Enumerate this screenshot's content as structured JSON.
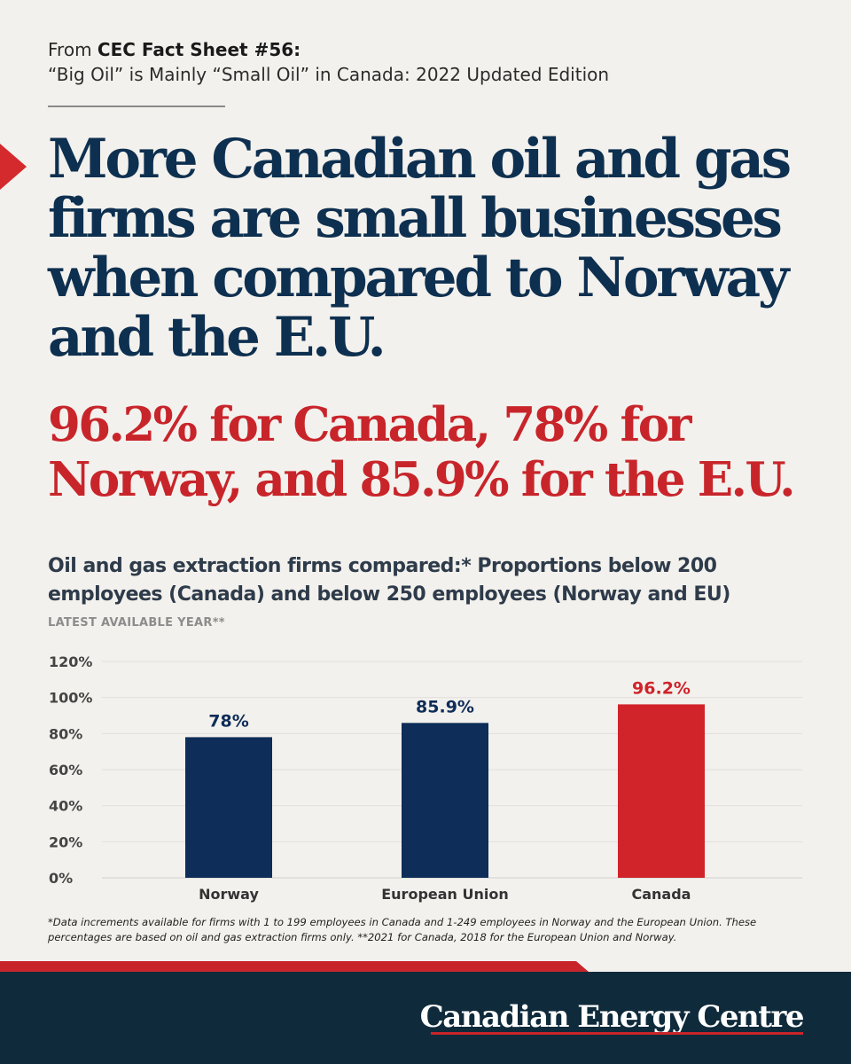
{
  "source": {
    "prefix": "From ",
    "name": "CEC Fact Sheet #56:",
    "subtitle": "“Big Oil” is Mainly “Small Oil” in Canada: 2022 Updated Edition"
  },
  "headline": "More Canadian oil and gas firms are small businesses when compared to Norway and the E.U.",
  "subheadline": "96.2% for Canada, 78% for Norway, and 85.9% for the E.U.",
  "chart_data": {
    "type": "bar",
    "title": "Oil and gas extraction firms compared:* Proportions below 200 employees (Canada) and below 250 employees (Norway and EU)",
    "subtitle": "LATEST AVAILABLE YEAR**",
    "categories": [
      "Norway",
      "European Union",
      "Canada"
    ],
    "values": [
      78,
      85.9,
      96.2
    ],
    "value_labels": [
      "78%",
      "85.9%",
      "96.2%"
    ],
    "colors": [
      "#0e2d58",
      "#0e2d58",
      "#d0232a"
    ],
    "label_colors": [
      "#0e2d58",
      "#0e2d58",
      "#d0232a"
    ],
    "ylim": [
      0,
      120
    ],
    "yticks": [
      0,
      20,
      40,
      60,
      80,
      100,
      120
    ],
    "ytick_labels": [
      "0%",
      "20%",
      "40%",
      "60%",
      "80%",
      "100%",
      "120%"
    ],
    "grid": true,
    "legend": "none"
  },
  "footnote": "*Data increments available for firms with 1 to 199 employees in Canada and 1-249 employees in Norway and the European Union. These percentages are based on oil and gas extraction firms only. **2021 for Canada, 2018 for the European Union and Norway.",
  "footer": {
    "brand": "Canadian Energy Centre"
  },
  "colors": {
    "navy": "#0e3050",
    "red": "#c8252b",
    "footer_bg": "#0f2a3b",
    "background": "#f3f1ed"
  }
}
